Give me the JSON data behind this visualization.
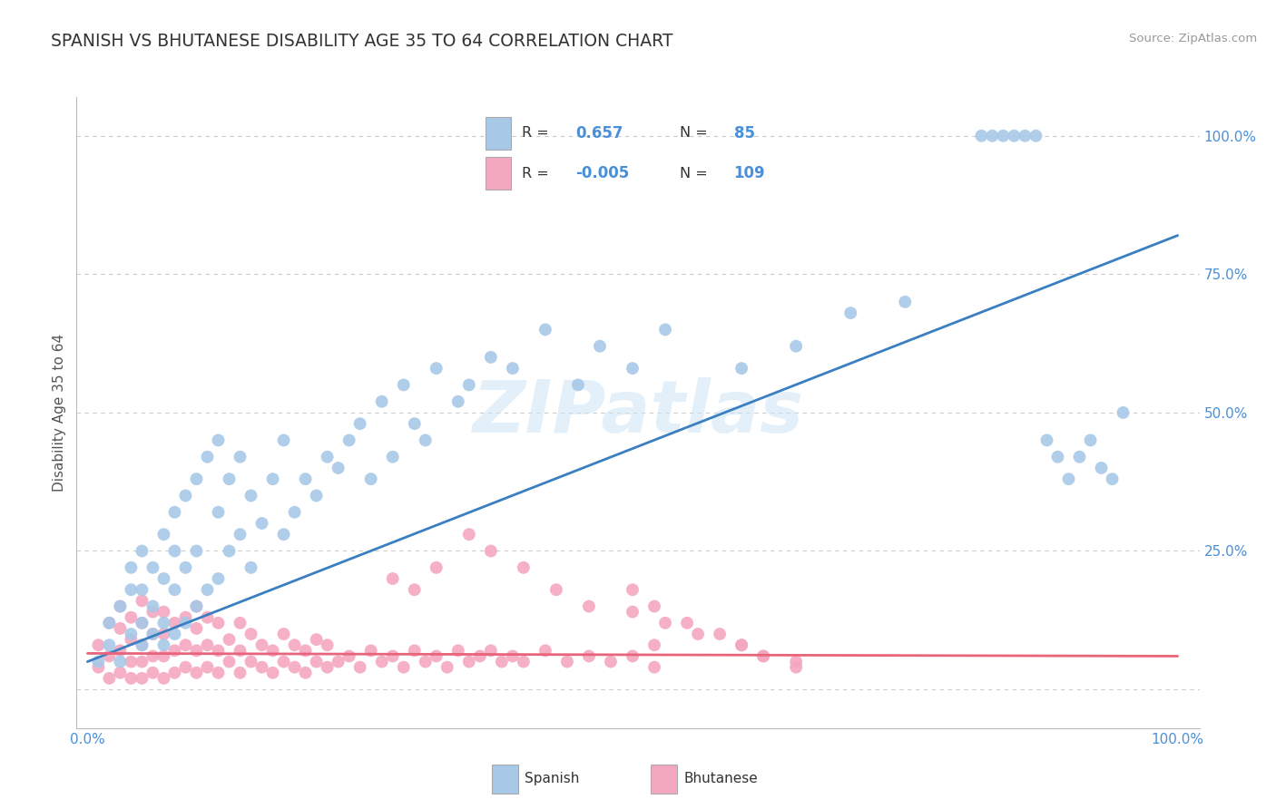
{
  "title": "SPANISH VS BHUTANESE DISABILITY AGE 35 TO 64 CORRELATION CHART",
  "source": "Source: ZipAtlas.com",
  "ylabel": "Disability Age 35 to 64",
  "xlim": [
    0,
    1.0
  ],
  "ylim": [
    -0.05,
    1.05
  ],
  "x_ticks": [
    0.0,
    0.125,
    0.25,
    0.375,
    0.5,
    0.625,
    0.75,
    0.875,
    1.0
  ],
  "x_tick_labels": [
    "0.0%",
    "",
    "",
    "",
    "",
    "",
    "",
    "",
    "100.0%"
  ],
  "y_ticks": [
    0.0,
    0.25,
    0.5,
    0.75,
    1.0
  ],
  "y_tick_labels": [
    "",
    "25.0%",
    "50.0%",
    "75.0%",
    "100.0%"
  ],
  "spanish_R": 0.657,
  "spanish_N": 85,
  "bhutanese_R": -0.005,
  "bhutanese_N": 109,
  "spanish_color": "#a8c8e8",
  "bhutanese_color": "#f4a8c0",
  "spanish_line_color": "#3a7fc1",
  "bhutanese_line_color": "#e8647a",
  "watermark": "ZIPatlas",
  "legend_label_spanish": "Spanish",
  "legend_label_bhutanese": "Bhutanese",
  "spanish_x": [
    0.01,
    0.02,
    0.02,
    0.03,
    0.03,
    0.04,
    0.04,
    0.04,
    0.05,
    0.05,
    0.05,
    0.05,
    0.06,
    0.06,
    0.06,
    0.07,
    0.07,
    0.07,
    0.07,
    0.08,
    0.08,
    0.08,
    0.08,
    0.09,
    0.09,
    0.09,
    0.1,
    0.1,
    0.1,
    0.11,
    0.11,
    0.12,
    0.12,
    0.12,
    0.13,
    0.13,
    0.14,
    0.14,
    0.15,
    0.15,
    0.16,
    0.17,
    0.18,
    0.18,
    0.19,
    0.2,
    0.21,
    0.22,
    0.23,
    0.24,
    0.25,
    0.26,
    0.27,
    0.28,
    0.29,
    0.3,
    0.31,
    0.32,
    0.34,
    0.35,
    0.37,
    0.39,
    0.42,
    0.45,
    0.47,
    0.5,
    0.53,
    0.6,
    0.65,
    0.7,
    0.75,
    0.82,
    0.83,
    0.84,
    0.85,
    0.86,
    0.87,
    0.88,
    0.89,
    0.9,
    0.91,
    0.92,
    0.93,
    0.94,
    0.95
  ],
  "spanish_y": [
    0.05,
    0.08,
    0.12,
    0.05,
    0.15,
    0.1,
    0.18,
    0.22,
    0.08,
    0.12,
    0.18,
    0.25,
    0.1,
    0.15,
    0.22,
    0.08,
    0.12,
    0.2,
    0.28,
    0.1,
    0.18,
    0.25,
    0.32,
    0.12,
    0.22,
    0.35,
    0.15,
    0.25,
    0.38,
    0.18,
    0.42,
    0.2,
    0.32,
    0.45,
    0.25,
    0.38,
    0.28,
    0.42,
    0.22,
    0.35,
    0.3,
    0.38,
    0.28,
    0.45,
    0.32,
    0.38,
    0.35,
    0.42,
    0.4,
    0.45,
    0.48,
    0.38,
    0.52,
    0.42,
    0.55,
    0.48,
    0.45,
    0.58,
    0.52,
    0.55,
    0.6,
    0.58,
    0.65,
    0.55,
    0.62,
    0.58,
    0.65,
    0.58,
    0.62,
    0.68,
    0.7,
    1.0,
    1.0,
    1.0,
    1.0,
    1.0,
    1.0,
    0.45,
    0.42,
    0.38,
    0.42,
    0.45,
    0.4,
    0.38,
    0.5
  ],
  "bhutanese_x": [
    0.01,
    0.01,
    0.02,
    0.02,
    0.02,
    0.03,
    0.03,
    0.03,
    0.03,
    0.04,
    0.04,
    0.04,
    0.04,
    0.05,
    0.05,
    0.05,
    0.05,
    0.05,
    0.06,
    0.06,
    0.06,
    0.06,
    0.07,
    0.07,
    0.07,
    0.07,
    0.08,
    0.08,
    0.08,
    0.09,
    0.09,
    0.09,
    0.1,
    0.1,
    0.1,
    0.1,
    0.11,
    0.11,
    0.11,
    0.12,
    0.12,
    0.12,
    0.13,
    0.13,
    0.14,
    0.14,
    0.14,
    0.15,
    0.15,
    0.16,
    0.16,
    0.17,
    0.17,
    0.18,
    0.18,
    0.19,
    0.19,
    0.2,
    0.2,
    0.21,
    0.21,
    0.22,
    0.22,
    0.23,
    0.24,
    0.25,
    0.26,
    0.27,
    0.28,
    0.29,
    0.3,
    0.31,
    0.32,
    0.33,
    0.34,
    0.35,
    0.36,
    0.37,
    0.38,
    0.39,
    0.4,
    0.42,
    0.44,
    0.46,
    0.48,
    0.5,
    0.52,
    0.52,
    0.28,
    0.3,
    0.32,
    0.35,
    0.37,
    0.4,
    0.43,
    0.46,
    0.5,
    0.53,
    0.56,
    0.6,
    0.62,
    0.65,
    0.5,
    0.52,
    0.55,
    0.58,
    0.6,
    0.62,
    0.65
  ],
  "bhutanese_y": [
    0.04,
    0.08,
    0.02,
    0.06,
    0.12,
    0.03,
    0.07,
    0.11,
    0.15,
    0.02,
    0.05,
    0.09,
    0.13,
    0.02,
    0.05,
    0.08,
    0.12,
    0.16,
    0.03,
    0.06,
    0.1,
    0.14,
    0.02,
    0.06,
    0.1,
    0.14,
    0.03,
    0.07,
    0.12,
    0.04,
    0.08,
    0.13,
    0.03,
    0.07,
    0.11,
    0.15,
    0.04,
    0.08,
    0.13,
    0.03,
    0.07,
    0.12,
    0.05,
    0.09,
    0.03,
    0.07,
    0.12,
    0.05,
    0.1,
    0.04,
    0.08,
    0.03,
    0.07,
    0.05,
    0.1,
    0.04,
    0.08,
    0.03,
    0.07,
    0.05,
    0.09,
    0.04,
    0.08,
    0.05,
    0.06,
    0.04,
    0.07,
    0.05,
    0.06,
    0.04,
    0.07,
    0.05,
    0.06,
    0.04,
    0.07,
    0.05,
    0.06,
    0.07,
    0.05,
    0.06,
    0.05,
    0.07,
    0.05,
    0.06,
    0.05,
    0.06,
    0.04,
    0.08,
    0.2,
    0.18,
    0.22,
    0.28,
    0.25,
    0.22,
    0.18,
    0.15,
    0.14,
    0.12,
    0.1,
    0.08,
    0.06,
    0.04,
    0.18,
    0.15,
    0.12,
    0.1,
    0.08,
    0.06,
    0.05
  ],
  "spanish_line_x": [
    0.0,
    1.0
  ],
  "spanish_line_y": [
    0.05,
    0.82
  ],
  "bhutanese_line_x": [
    0.0,
    1.0
  ],
  "bhutanese_line_y": [
    0.065,
    0.06
  ]
}
